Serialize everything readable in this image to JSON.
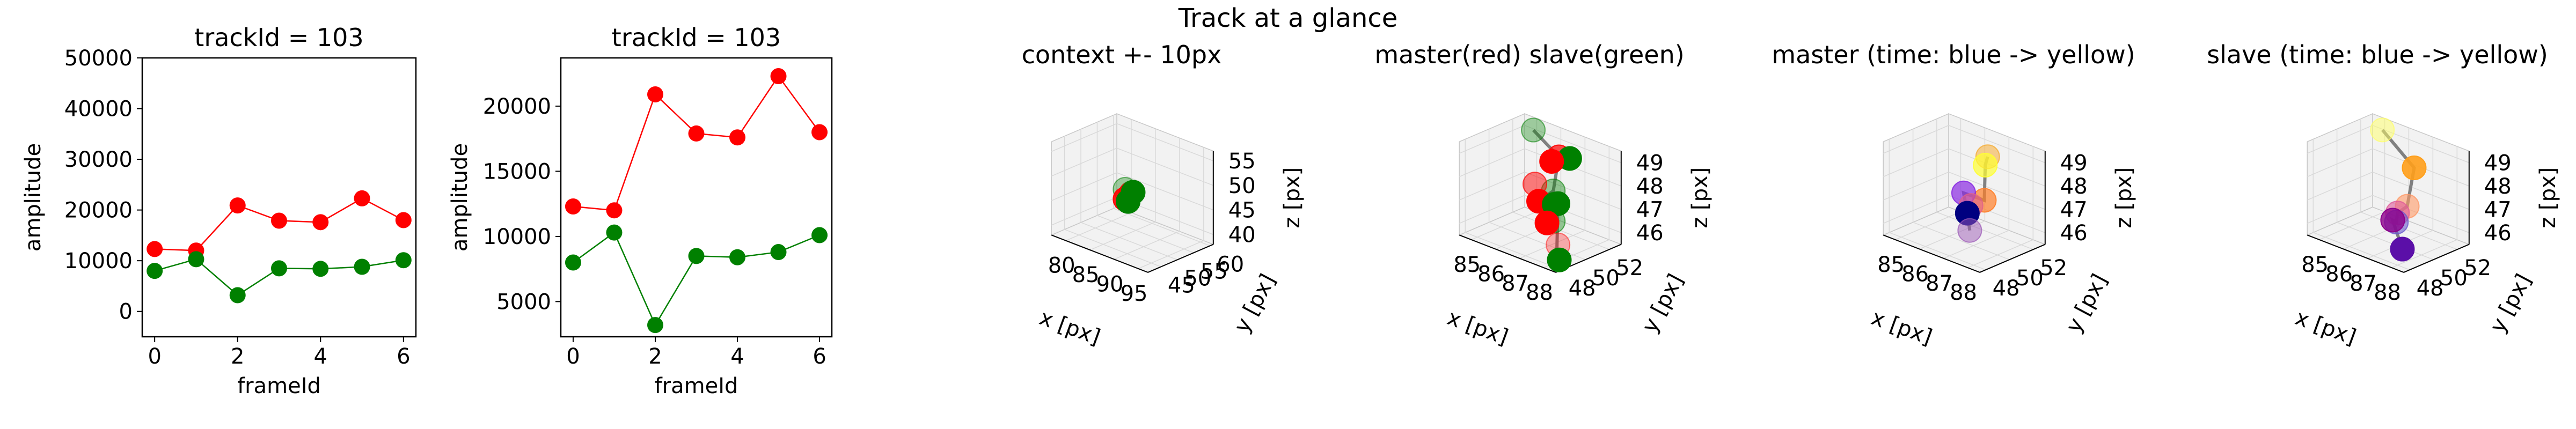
{
  "suptitle": "Track at a glance",
  "colors": {
    "red": "#ff0000",
    "green": "#008000",
    "path": "#808080",
    "pane": "#f2f2f2",
    "grid": "#d9d9d9"
  },
  "chart_data": [
    {
      "type": "line",
      "title": "trackId = 103",
      "xlabel": "frameId",
      "ylabel": "amplitude",
      "x": [
        0,
        1,
        2,
        3,
        4,
        5,
        6
      ],
      "xticks": [
        "0",
        "2",
        "4",
        "6"
      ],
      "yticks": [
        "0",
        "10000",
        "20000",
        "30000",
        "40000",
        "50000"
      ],
      "xlim": [
        -0.3,
        6.3
      ],
      "ylim": [
        -5000,
        50000
      ],
      "series": [
        {
          "color": "#ff0000",
          "values": [
            12300,
            12000,
            20900,
            17900,
            17600,
            22300,
            18000
          ]
        },
        {
          "color": "#008000",
          "values": [
            8000,
            10300,
            3200,
            8500,
            8400,
            8800,
            10100
          ]
        }
      ]
    },
    {
      "type": "line",
      "title": "trackId = 103",
      "xlabel": "frameId",
      "ylabel": "amplitude",
      "x": [
        0,
        1,
        2,
        3,
        4,
        5,
        6
      ],
      "xticks": [
        "0",
        "2",
        "4",
        "6"
      ],
      "yticks": [
        "5000",
        "10000",
        "15000",
        "20000"
      ],
      "xlim": [
        -0.3,
        6.3
      ],
      "ylim": [
        2300,
        23700
      ],
      "series": [
        {
          "color": "#ff0000",
          "values": [
            12300,
            12000,
            20900,
            17900,
            17600,
            22300,
            18000
          ]
        },
        {
          "color": "#008000",
          "values": [
            8000,
            10300,
            3200,
            8500,
            8400,
            8800,
            10100
          ]
        }
      ]
    },
    {
      "type": "scatter",
      "title": "context +- 10px",
      "xlabel": "x [px]",
      "ylabel": "y [px]",
      "zlabel": "z [px]",
      "xticks": [
        "80",
        "85",
        "90",
        "95"
      ],
      "yticks": [
        "45",
        "50",
        "55",
        "60"
      ],
      "zticks": [
        "40",
        "45",
        "50",
        "55"
      ],
      "xlim": [
        77,
        97
      ],
      "ylim": [
        41,
        61
      ],
      "zlim": [
        38,
        57
      ],
      "points": [
        {
          "x": 86.5,
          "y": 49.5,
          "z": 48.5,
          "color": "#008000",
          "alpha": 0.35
        },
        {
          "x": 87.5,
          "y": 50.0,
          "z": 48.0,
          "color": "#008000",
          "alpha": 0.4
        },
        {
          "x": 87.0,
          "y": 50.5,
          "z": 47.5,
          "color": "#ff0000",
          "alpha": 0.7
        },
        {
          "x": 86.5,
          "y": 49.5,
          "z": 46.5,
          "color": "#ff0000",
          "alpha": 0.9
        },
        {
          "x": 86.8,
          "y": 50.0,
          "z": 46.0,
          "color": "#008000",
          "alpha": 1.0
        },
        {
          "x": 87.5,
          "y": 50.5,
          "z": 48.0,
          "color": "#008000",
          "alpha": 1.0
        }
      ]
    },
    {
      "type": "scatter",
      "title": "master(red) slave(green)",
      "xlabel": "x [px]",
      "ylabel": "y [px]",
      "zlabel": "z [px]",
      "xticks": [
        "85",
        "86",
        "87",
        "88"
      ],
      "yticks": [
        "48",
        "50",
        "52"
      ],
      "zticks": [
        "46",
        "47",
        "48",
        "49"
      ],
      "xlim": [
        84.5,
        88.5
      ],
      "ylim": [
        47.5,
        53
      ],
      "zlim": [
        45.5,
        49.5
      ],
      "path": [
        [
          85.4,
          51.9,
          49.4
        ],
        [
          87.2,
          50.4,
          49.3
        ],
        [
          88.1,
          48.1,
          48.7
        ],
        [
          87.0,
          49.1,
          47.6
        ],
        [
          87.9,
          48.9,
          47.9
        ],
        [
          88.2,
          48.2,
          46.2
        ],
        [
          88.3,
          48.2,
          45.8
        ]
      ],
      "points": [
        {
          "x": 85.4,
          "y": 51.9,
          "z": 49.4,
          "color": "#008000",
          "alpha": 0.35
        },
        {
          "x": 87.2,
          "y": 50.4,
          "z": 49.3,
          "color": "#ff0000",
          "alpha": 0.7
        },
        {
          "x": 87.4,
          "y": 50.9,
          "z": 49.2,
          "color": "#008000",
          "alpha": 1.0
        },
        {
          "x": 86.8,
          "y": 50.6,
          "z": 48.9,
          "color": "#ff0000",
          "alpha": 1.0
        },
        {
          "x": 88.1,
          "y": 48.1,
          "z": 48.7,
          "color": "#008000",
          "alpha": 0.4
        },
        {
          "x": 87.0,
          "y": 49.1,
          "z": 47.6,
          "color": "#ff0000",
          "alpha": 1.0
        },
        {
          "x": 86.4,
          "y": 50.0,
          "z": 47.9,
          "color": "#ff0000",
          "alpha": 0.5
        },
        {
          "x": 87.9,
          "y": 48.9,
          "z": 47.9,
          "color": "#008000",
          "alpha": 1.0
        },
        {
          "x": 87.5,
          "y": 49.4,
          "z": 47.6,
          "color": "#008000",
          "alpha": 1.0
        },
        {
          "x": 88.1,
          "y": 48.1,
          "z": 47.4,
          "color": "#008000",
          "alpha": 0.4
        },
        {
          "x": 87.1,
          "y": 49.6,
          "z": 46.6,
          "color": "#ff0000",
          "alpha": 1.0
        },
        {
          "x": 88.1,
          "y": 48.5,
          "z": 46.3,
          "color": "#ff0000",
          "alpha": 0.3
        },
        {
          "x": 88.3,
          "y": 48.2,
          "z": 45.8,
          "color": "#008000",
          "alpha": 1.0
        }
      ]
    },
    {
      "type": "scatter",
      "title": "master (time: blue -> yellow)",
      "xlabel": "x [px]",
      "ylabel": "y [px]",
      "zlabel": "z [px]",
      "xticks": [
        "85",
        "86",
        "87",
        "88"
      ],
      "yticks": [
        "48",
        "50",
        "52"
      ],
      "zticks": [
        "46",
        "47",
        "48",
        "49"
      ],
      "xlim": [
        84.5,
        88.5
      ],
      "ylim": [
        47.5,
        53
      ],
      "zlim": [
        45.5,
        49.5
      ],
      "path": [
        [
          87.3,
          50.6,
          49.3
        ],
        [
          87.2,
          50.6,
          48.9
        ],
        [
          87.9,
          49.1,
          48.0
        ],
        [
          86.6,
          50.0,
          47.6
        ],
        [
          87.0,
          49.5,
          47.0
        ],
        [
          87.1,
          49.5,
          46.3
        ]
      ],
      "points": [
        {
          "x": 87.3,
          "y": 50.6,
          "z": 49.3,
          "color": "#f5a623",
          "alpha": 0.5
        },
        {
          "x": 87.2,
          "y": 50.6,
          "z": 48.9,
          "color": "#ffff33",
          "alpha": 0.7
        },
        {
          "x": 87.9,
          "y": 49.1,
          "z": 48.0,
          "color": "#ff7f2a",
          "alpha": 0.7
        },
        {
          "x": 86.6,
          "y": 50.0,
          "z": 47.6,
          "color": "#8a2be2",
          "alpha": 0.7
        },
        {
          "x": 87.4,
          "y": 49.0,
          "z": 47.6,
          "color": "#e0608a",
          "alpha": 0.6
        },
        {
          "x": 87.0,
          "y": 49.5,
          "z": 47.0,
          "color": "#000080",
          "alpha": 1.0
        },
        {
          "x": 87.1,
          "y": 49.5,
          "z": 46.3,
          "color": "#9b59b6",
          "alpha": 0.5
        }
      ]
    },
    {
      "type": "scatter",
      "title": "slave (time: blue -> yellow)",
      "xlabel": "x [px]",
      "ylabel": "y [px]",
      "zlabel": "z [px]",
      "xticks": [
        "85",
        "86",
        "87",
        "88"
      ],
      "yticks": [
        "48",
        "50",
        "52"
      ],
      "zticks": [
        "46",
        "47",
        "48",
        "49"
      ],
      "xlim": [
        84.5,
        88.5
      ],
      "ylim": [
        47.5,
        53
      ],
      "zlim": [
        45.5,
        49.5
      ],
      "path": [
        [
          85.3,
          52.2,
          49.3
        ],
        [
          87.8,
          49.8,
          49.2
        ],
        [
          88.3,
          48.2,
          48.1
        ],
        [
          87.6,
          48.8,
          47.4
        ],
        [
          87.8,
          48.3,
          47.2
        ],
        [
          87.5,
          48.6,
          47.1
        ],
        [
          88.0,
          48.4,
          46.1
        ]
      ],
      "points": [
        {
          "x": 85.3,
          "y": 52.2,
          "z": 49.3,
          "color": "#ffff66",
          "alpha": 0.5
        },
        {
          "x": 87.8,
          "y": 49.8,
          "z": 49.2,
          "color": "#ff9f1a",
          "alpha": 0.9
        },
        {
          "x": 88.3,
          "y": 48.2,
          "z": 48.1,
          "color": "#ff9966",
          "alpha": 0.6
        },
        {
          "x": 87.6,
          "y": 48.8,
          "z": 47.4,
          "color": "#e05a9a",
          "alpha": 0.6
        },
        {
          "x": 87.8,
          "y": 48.3,
          "z": 47.2,
          "color": "#6a5acd",
          "alpha": 0.6
        },
        {
          "x": 87.5,
          "y": 48.6,
          "z": 47.1,
          "color": "#8b008b",
          "alpha": 0.8
        },
        {
          "x": 88.0,
          "y": 48.4,
          "z": 46.1,
          "color": "#5b0fa8",
          "alpha": 1.0
        }
      ]
    }
  ]
}
